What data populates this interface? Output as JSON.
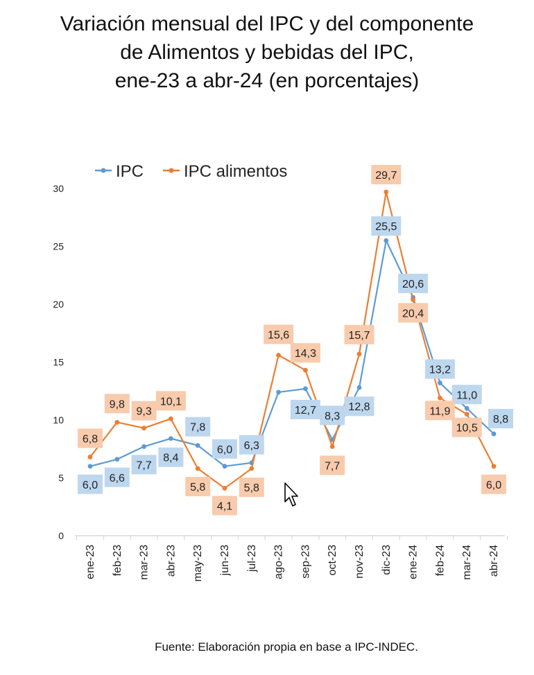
{
  "title": {
    "line1": "Variación mensual del IPC y del componente",
    "line2": "de Alimentos y bebidas del IPC,",
    "line3": "ene-23 a abr-24 (en porcentajes)"
  },
  "source": "Fuente: Elaboración propia en base a IPC-INDEC.",
  "colors": {
    "ipc": "#5B9BD5",
    "alimentos": "#ED7D31",
    "ipc_label_bg": "#BDD7EE",
    "alimentos_label_bg": "#F8CBAD",
    "axis": "#D9D9D9",
    "text": "#222222"
  },
  "chart_data": {
    "type": "line",
    "categories": [
      "ene-23",
      "feb-23",
      "mar-23",
      "abr-23",
      "may-23",
      "jun-23",
      "jul-23",
      "ago-23",
      "sep-23",
      "oct-23",
      "nov-23",
      "dic-23",
      "ene-24",
      "feb-24",
      "mar-24",
      "abr-24"
    ],
    "series": [
      {
        "name": "IPC",
        "values": [
          6.0,
          6.6,
          7.7,
          8.4,
          7.8,
          6.0,
          6.3,
          12.4,
          12.7,
          8.3,
          12.8,
          25.5,
          20.6,
          13.2,
          11.0,
          8.8
        ],
        "labels": [
          "6,0",
          "6,6",
          "7,7",
          "8,4",
          "7,8",
          "6,0",
          "6,3",
          "",
          "12,7",
          "8,3",
          "12,8",
          "25,5",
          "20,6",
          "13,2",
          "11,0",
          "8,8"
        ]
      },
      {
        "name": "IPC alimentos",
        "values": [
          6.8,
          9.8,
          9.3,
          10.1,
          5.8,
          4.1,
          5.8,
          15.6,
          14.3,
          7.7,
          15.7,
          29.7,
          20.4,
          11.9,
          10.5,
          6.0
        ],
        "labels": [
          "6,8",
          "9,8",
          "9,3",
          "10,1",
          "5,8",
          "4,1",
          "5,8",
          "15,6",
          "14,3",
          "7,7",
          "15,7",
          "29,7",
          "20,4",
          "11,9",
          "10,5",
          "6,0"
        ]
      }
    ],
    "ylim": [
      0,
      30
    ],
    "yticks": [
      0,
      5,
      10,
      15,
      20,
      25,
      30
    ],
    "grid": false,
    "legend": "top-left"
  }
}
